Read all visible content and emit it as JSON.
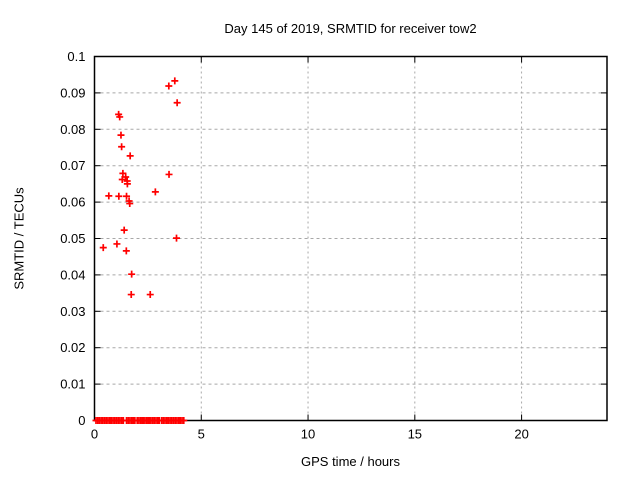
{
  "window": {
    "background_color": "#ffffff",
    "text_color": "#000000"
  },
  "chart_data": {
    "type": "scatter",
    "title": "Day 145 of 2019, SRMTID for receiver tow2",
    "xlabel": "GPS time / hours",
    "ylabel": "SRMTID / TECUs",
    "xlim": [
      0,
      24
    ],
    "ylim": [
      0,
      0.1
    ],
    "xticks": [
      0,
      5,
      10,
      15,
      20
    ],
    "xtick_labels": [
      "0",
      "5",
      "10",
      "15",
      "20"
    ],
    "yticks": [
      0,
      0.01,
      0.02,
      0.03,
      0.04,
      0.05,
      0.06,
      0.07,
      0.08,
      0.09,
      0.1
    ],
    "ytick_labels": [
      "0",
      "0.01",
      "0.02",
      "0.03",
      "0.04",
      "0.05",
      "0.06",
      "0.07",
      "0.08",
      "0.09",
      "0.1"
    ],
    "grid": true,
    "grid_color": "#a8a8a8",
    "frame_color": "#000000",
    "legend": "none",
    "marker": "plus",
    "series": [
      {
        "name": "SRMTID",
        "color": "#ff0000",
        "points": [
          [
            3.48,
            0.0919
          ],
          [
            3.76,
            0.0933
          ],
          [
            3.87,
            0.0873
          ],
          [
            1.13,
            0.0841
          ],
          [
            1.18,
            0.0834
          ],
          [
            1.24,
            0.0784
          ],
          [
            1.27,
            0.0752
          ],
          [
            1.67,
            0.0727
          ],
          [
            1.33,
            0.0679
          ],
          [
            3.49,
            0.0676
          ],
          [
            1.46,
            0.0669
          ],
          [
            1.3,
            0.0662
          ],
          [
            1.53,
            0.0658
          ],
          [
            1.54,
            0.065
          ],
          [
            2.85,
            0.0628
          ],
          [
            0.67,
            0.0617
          ],
          [
            1.14,
            0.0616
          ],
          [
            1.5,
            0.0616
          ],
          [
            1.62,
            0.0603
          ],
          [
            1.65,
            0.0596
          ],
          [
            1.39,
            0.0523
          ],
          [
            3.84,
            0.0501
          ],
          [
            1.05,
            0.0485
          ],
          [
            0.41,
            0.0475
          ],
          [
            1.49,
            0.0466
          ],
          [
            1.74,
            0.0402
          ],
          [
            1.72,
            0.0346
          ],
          [
            2.61,
            0.0346
          ],
          [
            0.07,
            0
          ],
          [
            0.15,
            0
          ],
          [
            0.23,
            0
          ],
          [
            0.31,
            0
          ],
          [
            0.39,
            0
          ],
          [
            0.47,
            0
          ],
          [
            0.55,
            0
          ],
          [
            0.63,
            0
          ],
          [
            0.71,
            0
          ],
          [
            0.79,
            0
          ],
          [
            0.87,
            0
          ],
          [
            0.95,
            0
          ],
          [
            1.03,
            0
          ],
          [
            1.11,
            0
          ],
          [
            1.19,
            0
          ],
          [
            1.27,
            0
          ],
          [
            1.35,
            0
          ],
          [
            1.5,
            0
          ],
          [
            1.58,
            0
          ],
          [
            1.66,
            0
          ],
          [
            1.74,
            0
          ],
          [
            1.82,
            0
          ],
          [
            1.89,
            0
          ],
          [
            2.0,
            0
          ],
          [
            2.08,
            0
          ],
          [
            2.16,
            0
          ],
          [
            2.24,
            0
          ],
          [
            2.28,
            0
          ],
          [
            2.36,
            0
          ],
          [
            2.44,
            0
          ],
          [
            2.51,
            0
          ],
          [
            2.56,
            0
          ],
          [
            2.64,
            0
          ],
          [
            2.72,
            0
          ],
          [
            2.8,
            0
          ],
          [
            2.88,
            0
          ],
          [
            2.96,
            0
          ],
          [
            3.03,
            0
          ],
          [
            3.14,
            0
          ],
          [
            3.22,
            0
          ],
          [
            3.3,
            0
          ],
          [
            3.38,
            0
          ],
          [
            3.46,
            0
          ],
          [
            3.54,
            0
          ],
          [
            3.62,
            0
          ],
          [
            3.7,
            0
          ],
          [
            3.78,
            0
          ],
          [
            3.86,
            0
          ],
          [
            3.94,
            0
          ],
          [
            4.02,
            0
          ],
          [
            4.1,
            0
          ],
          [
            4.18,
            0
          ]
        ]
      }
    ]
  }
}
